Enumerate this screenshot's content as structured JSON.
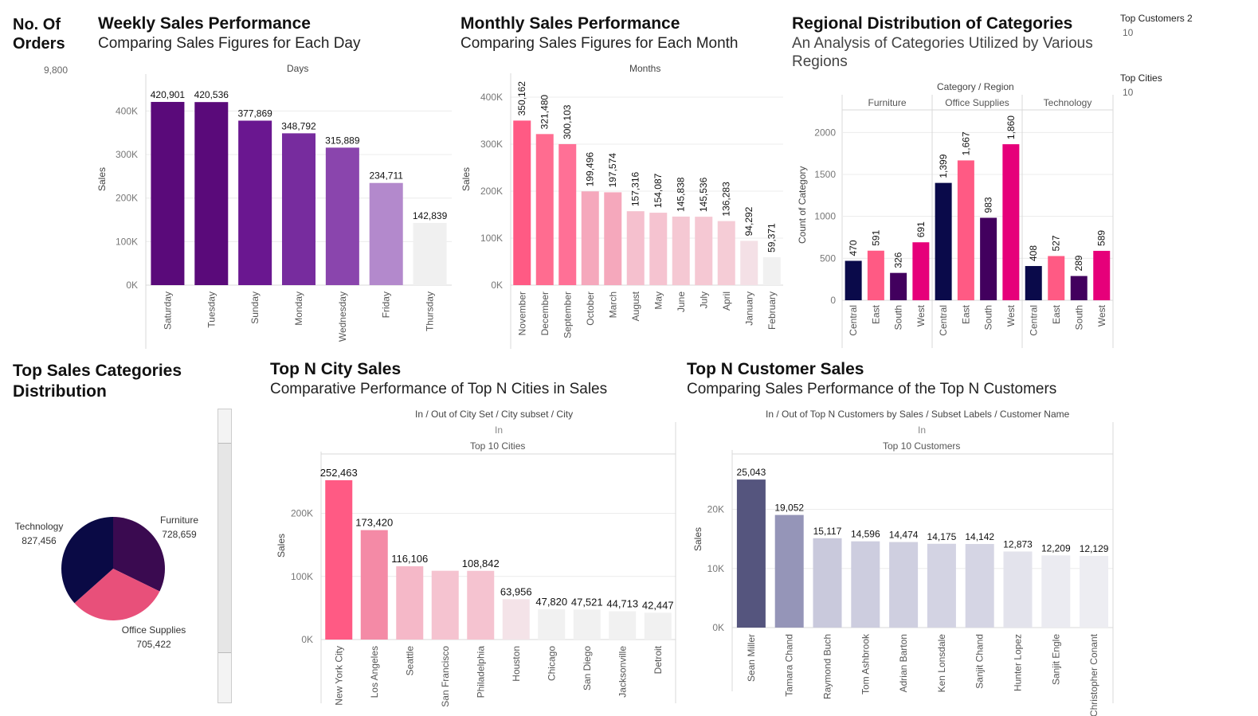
{
  "kpi": {
    "orders_title_1": "No. Of",
    "orders_title_2": "Orders",
    "orders_value": "9,800",
    "top_customers_label": "Top Customers 2",
    "top_customers_value": "10",
    "top_cities_label": "Top Cities",
    "top_cities_value": "10"
  },
  "weekly": {
    "title": "Weekly Sales Performance",
    "subtitle": "Comparing Sales Figures for Each Day",
    "header": "Days",
    "ylabel": "Sales"
  },
  "monthly": {
    "title": "Monthly Sales Performance",
    "subtitle": "Comparing Sales Figures for Each Month",
    "header": "Months",
    "ylabel": "Sales"
  },
  "regional": {
    "title": "Regional Distribution of Categories",
    "subtitle_1": "An Analysis of Categories Utilized by Various",
    "subtitle_2": "Regions",
    "header": "Category  /  Region",
    "ylabel": "Count of Category"
  },
  "pie_section": {
    "title_1": "Top Sales Categories",
    "title_2": "Distribution"
  },
  "city": {
    "title": "Top N City Sales",
    "subtitle": "Comparative Performance of Top N Cities in Sales",
    "header": "In / Out of City Set  /  City subset  /  City",
    "row1": "In",
    "row2": "Top 10 Cities",
    "ylabel": "Sales"
  },
  "customer": {
    "title": "Top N Customer Sales",
    "subtitle": "Comparing Sales Performance of the Top N Customers",
    "header": "In / Out of Top N Customers by Sales  /   Subset Labels  /  Customer Name",
    "row1": "In",
    "row2": "Top 10 Customers",
    "ylabel": "Sales"
  },
  "chart_data": [
    {
      "id": "weekly",
      "type": "bar",
      "title": "Weekly Sales Performance",
      "xlabel": "Days",
      "ylabel": "Sales",
      "ylim": [
        0,
        430000
      ],
      "yticks": [
        0,
        100000,
        200000,
        300000,
        400000
      ],
      "ytick_labels": [
        "0K",
        "100K",
        "200K",
        "300K",
        "400K"
      ],
      "categories": [
        "Saturday",
        "Tuesday",
        "Sunday",
        "Monday",
        "Wednesday",
        "Friday",
        "Thursday"
      ],
      "values": [
        420901,
        420536,
        377869,
        348792,
        315889,
        234711,
        142839
      ],
      "labels": [
        "420,901",
        "420,536",
        "377,869",
        "348,792",
        "315,889",
        "234,711",
        "142,839"
      ],
      "colors": [
        "#5a0a7a",
        "#5a0a7a",
        "#6a1790",
        "#772c9e",
        "#8a45ad",
        "#b389cc",
        "#f0f0f0"
      ]
    },
    {
      "id": "monthly",
      "type": "bar",
      "title": "Monthly Sales Performance",
      "xlabel": "Months",
      "ylabel": "Sales",
      "ylim": [
        0,
        400000
      ],
      "yticks": [
        0,
        100000,
        200000,
        300000,
        400000
      ],
      "ytick_labels": [
        "0K",
        "100K",
        "200K",
        "300K",
        "400K"
      ],
      "categories": [
        "November",
        "December",
        "September",
        "October",
        "March",
        "August",
        "May",
        "June",
        "July",
        "April",
        "January",
        "February"
      ],
      "values": [
        350162,
        321480,
        300103,
        199496,
        197574,
        157316,
        154087,
        145838,
        145536,
        136283,
        94292,
        59371
      ],
      "labels": [
        "350,162",
        "321,480",
        "300,103",
        "199,496",
        "197,574",
        "157,316",
        "154,087",
        "145,838",
        "145,536",
        "136,283",
        "94,292",
        "59,371"
      ],
      "colors": [
        "#ff5a84",
        "#ff6c90",
        "#ff7096",
        "#f5a8bc",
        "#f5a8bc",
        "#f5c0ce",
        "#f5c3d0",
        "#f5c8d3",
        "#f5c8d3",
        "#f5ccd6",
        "#f4e0e6",
        "#f1f1f1"
      ]
    },
    {
      "id": "regional",
      "type": "bar",
      "title": "Regional Distribution of Categories",
      "xlabel": "Category  /  Region",
      "ylabel": "Count of Category",
      "ylim": [
        0,
        2250
      ],
      "yticks": [
        0,
        500,
        1000,
        1500,
        2000
      ],
      "ytick_labels": [
        "0",
        "500",
        "1000",
        "1500",
        "2000"
      ],
      "groups": [
        "Furniture",
        "Office Supplies",
        "Technology"
      ],
      "regions": [
        "Central",
        "East",
        "South",
        "West"
      ],
      "values": [
        [
          470,
          591,
          326,
          691
        ],
        [
          1399,
          1667,
          983,
          1860
        ],
        [
          408,
          527,
          289,
          589
        ]
      ],
      "labels": [
        [
          "470",
          "591",
          "326",
          "691"
        ],
        [
          "1,399",
          "1,667",
          "983",
          "1,860"
        ],
        [
          "408",
          "527",
          "289",
          "589"
        ]
      ],
      "colors": [
        "#0a0a4a",
        "#ff5a84",
        "#42005e",
        "#e6007a"
      ]
    },
    {
      "id": "pie",
      "type": "pie",
      "title": "Top Sales Categories Distribution",
      "categories": [
        "Furniture",
        "Office Supplies",
        "Technology"
      ],
      "values": [
        728659,
        705422,
        827456
      ],
      "labels": [
        "728,659",
        "705,422",
        "827,456"
      ],
      "colors": [
        "#3a0a50",
        "#e8507a",
        "#0a0a45"
      ]
    },
    {
      "id": "city",
      "type": "bar",
      "title": "Top N City Sales",
      "xlabel": "In / Out of City Set  /  City subset  /  City",
      "ylabel": "Sales",
      "ylim": [
        0,
        260000
      ],
      "yticks": [
        0,
        100000,
        200000
      ],
      "ytick_labels": [
        "0K",
        "100K",
        "200K"
      ],
      "categories": [
        "New York City",
        "Los Angeles",
        "Seattle",
        "San Francisco",
        "Philadelphia",
        "Houston",
        "Chicago",
        "San Diego",
        "Jacksonville",
        "Detroit"
      ],
      "values": [
        252463,
        173420,
        116106,
        109000,
        108842,
        63956,
        47820,
        47521,
        44713,
        42447
      ],
      "labels": [
        "252,463",
        "173,420",
        "116,106",
        "",
        "108,842",
        "63,956",
        "47,820",
        "47,521",
        "44,713",
        "42,447"
      ],
      "colors": [
        "#ff5a84",
        "#f48aa6",
        "#f5b8c8",
        "#f5c3d0",
        "#f5c3d0",
        "#f4e3e8",
        "#f1f1f1",
        "#f1f1f1",
        "#f1f1f1",
        "#f1f1f1"
      ]
    },
    {
      "id": "customer",
      "type": "bar",
      "title": "Top N Customer Sales",
      "xlabel": "In / Out of Top N Customers by Sales  /   Subset Labels  /  Customer Name",
      "ylabel": "Sales",
      "ylim": [
        0,
        26000
      ],
      "yticks": [
        0,
        10000,
        20000
      ],
      "ytick_labels": [
        "0K",
        "10K",
        "20K"
      ],
      "categories": [
        "Sean Miller",
        "Tamara Chand",
        "Raymond Buch",
        "Tom Ashbrook",
        "Adrian Barton",
        "Ken Lonsdale",
        "Sanjit Chand",
        "Hunter Lopez",
        "Sanjit Engle",
        "Christopher Conant"
      ],
      "values": [
        25043,
        19052,
        15117,
        14596,
        14474,
        14175,
        14142,
        12873,
        12209,
        12129
      ],
      "labels": [
        "25,043",
        "19,052",
        "15,117",
        "14,596",
        "14,474",
        "14,175",
        "14,142",
        "12,873",
        "12,209",
        "12,129"
      ],
      "colors": [
        "#55557e",
        "#9595b8",
        "#c9c9dc",
        "#cdcddf",
        "#cfcfe0",
        "#d3d3e3",
        "#d5d5e4",
        "#e3e3ec",
        "#ebebf1",
        "#ededf2"
      ]
    }
  ]
}
